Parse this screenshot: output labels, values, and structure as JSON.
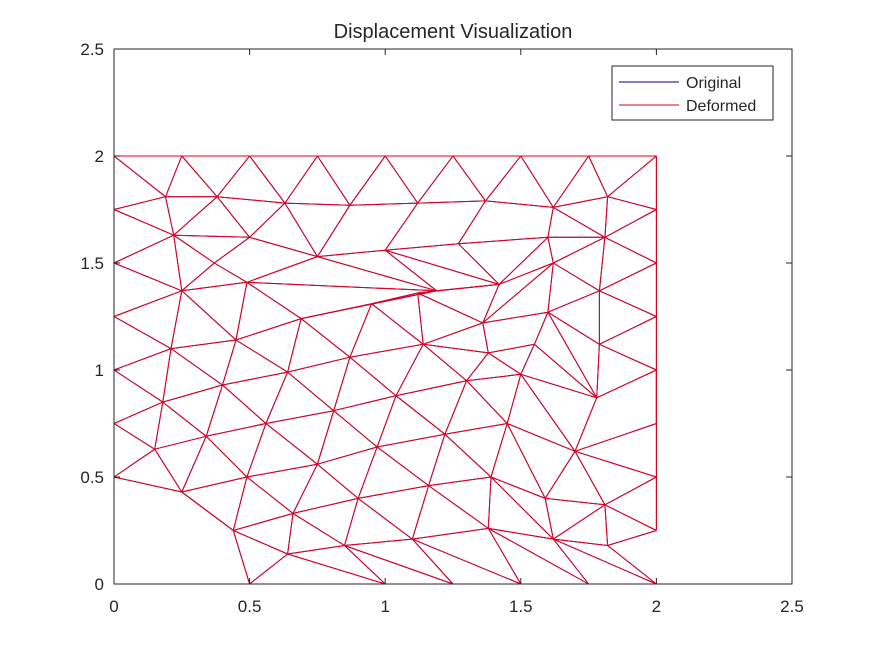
{
  "chart_data": {
    "type": "line",
    "title": "Displacement Visualization",
    "xlabel": "",
    "ylabel": "",
    "xlim": [
      0,
      2.5
    ],
    "ylim": [
      0,
      2.5
    ],
    "xticks": [
      0,
      0.5,
      1,
      1.5,
      2,
      2.5
    ],
    "yticks": [
      0,
      0.5,
      1,
      1.5,
      2,
      2.5
    ],
    "xtick_labels": [
      "0",
      "0.5",
      "1",
      "1.5",
      "2",
      "2.5"
    ],
    "ytick_labels": [
      "0",
      "0.5",
      "1",
      "1.5",
      "2",
      "2.5"
    ],
    "grid": false,
    "box": true,
    "legend": {
      "location": "top-right",
      "entries": [
        {
          "name": "Original",
          "color": "#00007f"
        },
        {
          "name": "Deformed",
          "color": "#e8001c"
        }
      ]
    },
    "nodes": [
      [
        0,
        2
      ],
      [
        0.25,
        2
      ],
      [
        0.5,
        2
      ],
      [
        0.75,
        2
      ],
      [
        1.0,
        2
      ],
      [
        1.25,
        2
      ],
      [
        1.5,
        2
      ],
      [
        1.75,
        2
      ],
      [
        2.0,
        2
      ],
      [
        0,
        1.75
      ],
      [
        0.19,
        1.81
      ],
      [
        0.38,
        1.81
      ],
      [
        0.63,
        1.78
      ],
      [
        0.87,
        1.77
      ],
      [
        1.12,
        1.78
      ],
      [
        1.37,
        1.79
      ],
      [
        1.62,
        1.76
      ],
      [
        1.82,
        1.81
      ],
      [
        2.0,
        1.75
      ],
      [
        0.22,
        1.63
      ],
      [
        0.5,
        1.62
      ],
      [
        0.37,
        1.5
      ],
      [
        0.75,
        1.53
      ],
      [
        1.0,
        1.56
      ],
      [
        1.27,
        1.59
      ],
      [
        1.6,
        1.62
      ],
      [
        1.81,
        1.62
      ],
      [
        2.0,
        1.5
      ],
      [
        0,
        1.5
      ],
      [
        0.25,
        1.37
      ],
      [
        0.49,
        1.41
      ],
      [
        1.19,
        1.37
      ],
      [
        1.42,
        1.4
      ],
      [
        1.62,
        1.5
      ],
      [
        1.79,
        1.37
      ],
      [
        2.0,
        1.25
      ],
      [
        0,
        1.25
      ],
      [
        0.21,
        1.1
      ],
      [
        0.45,
        1.14
      ],
      [
        0.69,
        1.24
      ],
      [
        0.95,
        1.31
      ],
      [
        1.12,
        1.36
      ],
      [
        1.36,
        1.22
      ],
      [
        1.6,
        1.27
      ],
      [
        1.79,
        1.12
      ],
      [
        0,
        1.0
      ],
      [
        0.18,
        0.85
      ],
      [
        0.4,
        0.93
      ],
      [
        0.64,
        0.99
      ],
      [
        0.87,
        1.06
      ],
      [
        1.14,
        1.12
      ],
      [
        1.38,
        1.08
      ],
      [
        1.55,
        1.12
      ],
      [
        1.78,
        0.87
      ],
      [
        2.0,
        1.0
      ],
      [
        0,
        0.75
      ],
      [
        0.15,
        0.63
      ],
      [
        0.34,
        0.69
      ],
      [
        0.56,
        0.75
      ],
      [
        0.81,
        0.81
      ],
      [
        1.04,
        0.88
      ],
      [
        1.3,
        0.95
      ],
      [
        1.5,
        0.98
      ],
      [
        2.0,
        0.75
      ],
      [
        0,
        0.5
      ],
      [
        0.25,
        0.43
      ],
      [
        0.49,
        0.5
      ],
      [
        0.75,
        0.56
      ],
      [
        0.97,
        0.64
      ],
      [
        1.22,
        0.7
      ],
      [
        1.45,
        0.75
      ],
      [
        1.7,
        0.62
      ],
      [
        2.0,
        0.5
      ],
      [
        0.44,
        0.25
      ],
      [
        0.66,
        0.33
      ],
      [
        0.9,
        0.4
      ],
      [
        1.16,
        0.46
      ],
      [
        1.39,
        0.5
      ],
      [
        1.59,
        0.4
      ],
      [
        1.81,
        0.37
      ],
      [
        2.0,
        0.25
      ],
      [
        0.5,
        0
      ],
      [
        0.64,
        0.14
      ],
      [
        0.85,
        0.18
      ],
      [
        1.1,
        0.21
      ],
      [
        1.38,
        0.26
      ],
      [
        1.62,
        0.21
      ],
      [
        1.82,
        0.18
      ],
      [
        0.75,
        0
      ],
      [
        1.0,
        0
      ],
      [
        1.25,
        0
      ],
      [
        1.5,
        0
      ],
      [
        1.75,
        0
      ],
      [
        2.0,
        0
      ]
    ],
    "edges": [
      [
        0,
        1
      ],
      [
        1,
        2
      ],
      [
        2,
        3
      ],
      [
        3,
        4
      ],
      [
        4,
        5
      ],
      [
        5,
        6
      ],
      [
        6,
        7
      ],
      [
        7,
        8
      ],
      [
        0,
        9
      ],
      [
        9,
        28
      ],
      [
        28,
        36
      ],
      [
        36,
        45
      ],
      [
        45,
        55
      ],
      [
        55,
        64
      ],
      [
        8,
        18
      ],
      [
        18,
        27
      ],
      [
        27,
        35
      ],
      [
        35,
        54
      ],
      [
        54,
        63
      ],
      [
        63,
        72
      ],
      [
        72,
        80
      ],
      [
        80,
        96
      ],
      [
        81,
        89
      ],
      [
        89,
        90
      ],
      [
        90,
        91
      ],
      [
        91,
        92
      ],
      [
        92,
        93
      ],
      [
        93,
        94
      ],
      [
        94,
        95
      ],
      [
        95,
        96
      ],
      [
        64,
        65
      ],
      [
        65,
        73
      ],
      [
        73,
        81
      ],
      [
        0,
        10
      ],
      [
        1,
        10
      ],
      [
        1,
        11
      ],
      [
        2,
        11
      ],
      [
        2,
        12
      ],
      [
        3,
        12
      ],
      [
        3,
        13
      ],
      [
        4,
        13
      ],
      [
        4,
        14
      ],
      [
        5,
        14
      ],
      [
        5,
        15
      ],
      [
        6,
        15
      ],
      [
        6,
        16
      ],
      [
        7,
        16
      ],
      [
        7,
        17
      ],
      [
        8,
        17
      ],
      [
        9,
        10
      ],
      [
        10,
        11
      ],
      [
        11,
        12
      ],
      [
        12,
        13
      ],
      [
        13,
        14
      ],
      [
        14,
        15
      ],
      [
        15,
        16
      ],
      [
        16,
        17
      ],
      [
        17,
        18
      ],
      [
        9,
        19
      ],
      [
        10,
        19
      ],
      [
        11,
        19
      ],
      [
        11,
        20
      ],
      [
        12,
        20
      ],
      [
        12,
        22
      ],
      [
        13,
        22
      ],
      [
        14,
        23
      ],
      [
        15,
        24
      ],
      [
        16,
        25
      ],
      [
        16,
        26
      ],
      [
        17,
        26
      ],
      [
        18,
        26
      ],
      [
        19,
        20
      ],
      [
        19,
        21
      ],
      [
        20,
        21
      ],
      [
        20,
        22
      ],
      [
        22,
        23
      ],
      [
        23,
        24
      ],
      [
        24,
        25
      ],
      [
        25,
        26
      ],
      [
        26,
        27
      ],
      [
        28,
        19
      ],
      [
        28,
        29
      ],
      [
        19,
        29
      ],
      [
        21,
        29
      ],
      [
        21,
        30
      ],
      [
        22,
        30
      ],
      [
        22,
        31
      ],
      [
        23,
        31
      ],
      [
        23,
        32
      ],
      [
        24,
        32
      ],
      [
        25,
        32
      ],
      [
        25,
        33
      ],
      [
        26,
        33
      ],
      [
        26,
        34
      ],
      [
        27,
        34
      ],
      [
        29,
        30
      ],
      [
        30,
        31
      ],
      [
        31,
        32
      ],
      [
        32,
        33
      ],
      [
        33,
        34
      ],
      [
        34,
        35
      ],
      [
        36,
        29
      ],
      [
        36,
        37
      ],
      [
        29,
        37
      ],
      [
        29,
        38
      ],
      [
        30,
        38
      ],
      [
        30,
        39
      ],
      [
        31,
        39
      ],
      [
        31,
        40
      ],
      [
        31,
        41
      ],
      [
        32,
        41
      ],
      [
        32,
        42
      ],
      [
        33,
        42
      ],
      [
        33,
        43
      ],
      [
        34,
        43
      ],
      [
        34,
        44
      ],
      [
        35,
        44
      ],
      [
        37,
        38
      ],
      [
        38,
        39
      ],
      [
        39,
        40
      ],
      [
        40,
        41
      ],
      [
        41,
        42
      ],
      [
        42,
        43
      ],
      [
        43,
        44
      ],
      [
        45,
        37
      ],
      [
        45,
        46
      ],
      [
        37,
        46
      ],
      [
        37,
        47
      ],
      [
        38,
        47
      ],
      [
        38,
        48
      ],
      [
        39,
        48
      ],
      [
        39,
        49
      ],
      [
        40,
        49
      ],
      [
        40,
        50
      ],
      [
        41,
        50
      ],
      [
        42,
        50
      ],
      [
        42,
        51
      ],
      [
        43,
        52
      ],
      [
        43,
        53
      ],
      [
        44,
        53
      ],
      [
        44,
        54
      ],
      [
        46,
        47
      ],
      [
        47,
        48
      ],
      [
        48,
        49
      ],
      [
        49,
        50
      ],
      [
        50,
        51
      ],
      [
        51,
        52
      ],
      [
        52,
        53
      ],
      [
        53,
        54
      ],
      [
        55,
        46
      ],
      [
        55,
        56
      ],
      [
        46,
        56
      ],
      [
        46,
        57
      ],
      [
        47,
        57
      ],
      [
        47,
        58
      ],
      [
        48,
        58
      ],
      [
        48,
        59
      ],
      [
        49,
        59
      ],
      [
        49,
        60
      ],
      [
        50,
        60
      ],
      [
        50,
        61
      ],
      [
        51,
        61
      ],
      [
        51,
        62
      ],
      [
        52,
        62
      ],
      [
        53,
        62
      ],
      [
        53,
        71
      ],
      [
        54,
        63
      ],
      [
        56,
        57
      ],
      [
        57,
        58
      ],
      [
        58,
        59
      ],
      [
        59,
        60
      ],
      [
        60,
        61
      ],
      [
        61,
        62
      ],
      [
        64,
        56
      ],
      [
        56,
        65
      ],
      [
        57,
        65
      ],
      [
        57,
        66
      ],
      [
        58,
        66
      ],
      [
        58,
        67
      ],
      [
        59,
        67
      ],
      [
        59,
        68
      ],
      [
        60,
        68
      ],
      [
        60,
        69
      ],
      [
        61,
        69
      ],
      [
        61,
        70
      ],
      [
        62,
        70
      ],
      [
        62,
        71
      ],
      [
        71,
        63
      ],
      [
        65,
        66
      ],
      [
        66,
        67
      ],
      [
        67,
        68
      ],
      [
        68,
        69
      ],
      [
        69,
        70
      ],
      [
        70,
        71
      ],
      [
        71,
        72
      ],
      [
        65,
        73
      ],
      [
        66,
        73
      ],
      [
        66,
        74
      ],
      [
        67,
        74
      ],
      [
        67,
        75
      ],
      [
        68,
        75
      ],
      [
        68,
        76
      ],
      [
        69,
        76
      ],
      [
        69,
        77
      ],
      [
        70,
        77
      ],
      [
        70,
        78
      ],
      [
        71,
        78
      ],
      [
        71,
        79
      ],
      [
        72,
        79
      ],
      [
        73,
        74
      ],
      [
        74,
        75
      ],
      [
        75,
        76
      ],
      [
        76,
        77
      ],
      [
        77,
        78
      ],
      [
        78,
        79
      ],
      [
        79,
        80
      ],
      [
        73,
        82
      ],
      [
        74,
        82
      ],
      [
        74,
        83
      ],
      [
        75,
        83
      ],
      [
        75,
        84
      ],
      [
        76,
        84
      ],
      [
        76,
        85
      ],
      [
        77,
        85
      ],
      [
        77,
        86
      ],
      [
        78,
        86
      ],
      [
        79,
        86
      ],
      [
        79,
        87
      ],
      [
        80,
        87
      ],
      [
        81,
        82
      ],
      [
        82,
        83
      ],
      [
        83,
        84
      ],
      [
        84,
        85
      ],
      [
        85,
        86
      ],
      [
        86,
        87
      ],
      [
        87,
        96
      ],
      [
        82,
        89
      ],
      [
        83,
        89
      ],
      [
        83,
        90
      ],
      [
        84,
        90
      ],
      [
        84,
        91
      ],
      [
        85,
        91
      ],
      [
        85,
        92
      ],
      [
        86,
        92
      ],
      [
        86,
        93
      ],
      [
        87,
        93
      ],
      [
        87,
        94
      ],
      [
        87,
        95
      ]
    ]
  }
}
